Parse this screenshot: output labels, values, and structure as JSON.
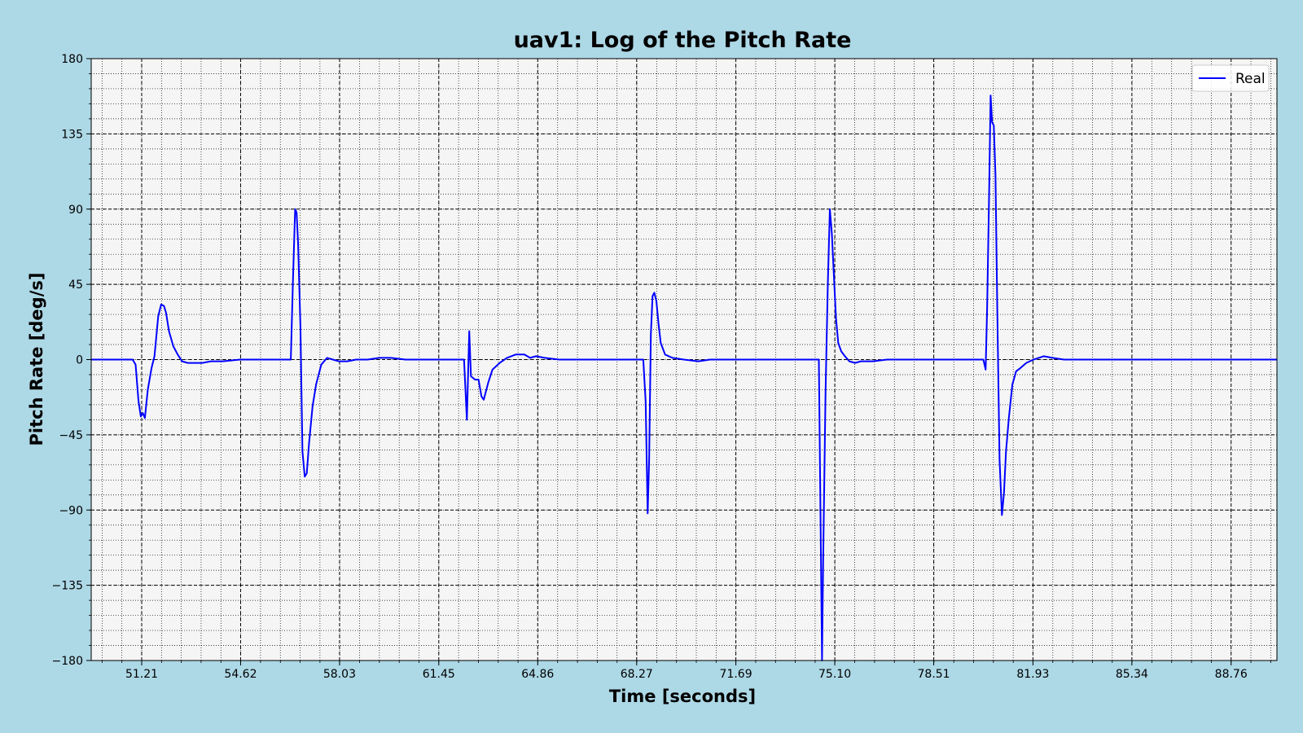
{
  "colors": {
    "page_background": "#add8e6",
    "plot_background": "#f5f5f5",
    "series_line": "#0000ff",
    "grid_major": "#000000",
    "grid_minor": "#000000"
  },
  "chart_data": {
    "type": "line",
    "title": "uav1: Log of the Pitch Rate",
    "xlabel": "Time [seconds]",
    "ylabel": "Pitch Rate [deg/s]",
    "xlim": [
      49.47,
      90.34
    ],
    "ylim": [
      -180,
      180
    ],
    "x_ticks": [
      51.21,
      54.62,
      58.03,
      61.45,
      64.86,
      68.27,
      71.69,
      75.1,
      78.51,
      81.93,
      85.34,
      88.76
    ],
    "x_tick_labels": [
      "51.21",
      "54.62",
      "58.03",
      "61.45",
      "64.86",
      "68.27",
      "71.69",
      "75.10",
      "78.51",
      "81.93",
      "85.34",
      "88.76"
    ],
    "y_ticks": [
      -180,
      -135,
      -90,
      -45,
      0,
      45,
      90,
      135,
      180
    ],
    "y_tick_labels": [
      "−180",
      "−135",
      "−90",
      "−45",
      "0",
      "45",
      "90",
      "135",
      "180"
    ],
    "grid": true,
    "minor_grid": true,
    "legend": {
      "position": "top-right",
      "entries": [
        "Real"
      ]
    },
    "series": [
      {
        "name": "Real",
        "points": [
          [
            49.47,
            0
          ],
          [
            50.9,
            0
          ],
          [
            51.0,
            -3
          ],
          [
            51.1,
            -25
          ],
          [
            51.18,
            -34
          ],
          [
            51.25,
            -32
          ],
          [
            51.32,
            -35
          ],
          [
            51.42,
            -18
          ],
          [
            51.55,
            -5
          ],
          [
            51.65,
            2
          ],
          [
            51.78,
            26
          ],
          [
            51.88,
            33
          ],
          [
            51.98,
            32
          ],
          [
            52.05,
            28
          ],
          [
            52.15,
            17
          ],
          [
            52.3,
            8
          ],
          [
            52.45,
            3
          ],
          [
            52.6,
            -1
          ],
          [
            52.8,
            -2
          ],
          [
            53.0,
            -2
          ],
          [
            53.3,
            -2
          ],
          [
            53.6,
            -1
          ],
          [
            54.0,
            -1
          ],
          [
            54.6,
            0
          ],
          [
            55.5,
            0
          ],
          [
            56.35,
            0
          ],
          [
            56.42,
            45
          ],
          [
            56.5,
            90
          ],
          [
            56.55,
            88
          ],
          [
            56.6,
            70
          ],
          [
            56.68,
            20
          ],
          [
            56.75,
            -55
          ],
          [
            56.83,
            -70
          ],
          [
            56.9,
            -68
          ],
          [
            56.98,
            -50
          ],
          [
            57.1,
            -28
          ],
          [
            57.22,
            -15
          ],
          [
            57.4,
            -3
          ],
          [
            57.6,
            1
          ],
          [
            57.8,
            0
          ],
          [
            58.0,
            -1
          ],
          [
            58.3,
            -1
          ],
          [
            58.6,
            0
          ],
          [
            59.0,
            0
          ],
          [
            59.4,
            1
          ],
          [
            59.8,
            1
          ],
          [
            60.3,
            0
          ],
          [
            60.8,
            0
          ],
          [
            61.4,
            0
          ],
          [
            62.0,
            0
          ],
          [
            62.32,
            0
          ],
          [
            62.42,
            -36
          ],
          [
            62.5,
            17
          ],
          [
            62.56,
            -10
          ],
          [
            62.7,
            -12
          ],
          [
            62.82,
            -12
          ],
          [
            62.92,
            -22
          ],
          [
            63.0,
            -24
          ],
          [
            63.15,
            -14
          ],
          [
            63.3,
            -6
          ],
          [
            63.55,
            -2
          ],
          [
            63.8,
            1
          ],
          [
            64.1,
            3
          ],
          [
            64.4,
            3
          ],
          [
            64.6,
            1
          ],
          [
            64.8,
            2
          ],
          [
            65.1,
            1
          ],
          [
            65.6,
            0
          ],
          [
            66.2,
            0
          ],
          [
            67.0,
            0
          ],
          [
            68.0,
            0
          ],
          [
            68.5,
            0
          ],
          [
            68.58,
            -25
          ],
          [
            68.65,
            -92
          ],
          [
            68.7,
            -60
          ],
          [
            68.76,
            15
          ],
          [
            68.82,
            38
          ],
          [
            68.88,
            40
          ],
          [
            68.95,
            35
          ],
          [
            69.02,
            22
          ],
          [
            69.1,
            10
          ],
          [
            69.25,
            3
          ],
          [
            69.5,
            1
          ],
          [
            69.9,
            0
          ],
          [
            70.4,
            -1
          ],
          [
            70.8,
            0
          ],
          [
            71.4,
            0
          ],
          [
            72.2,
            0
          ],
          [
            73.0,
            0
          ],
          [
            73.8,
            0
          ],
          [
            74.55,
            0
          ],
          [
            74.62,
            -115
          ],
          [
            74.66,
            -180
          ],
          [
            74.7,
            -120
          ],
          [
            74.78,
            -20
          ],
          [
            74.86,
            45
          ],
          [
            74.93,
            90
          ],
          [
            75.0,
            75
          ],
          [
            75.07,
            50
          ],
          [
            75.14,
            25
          ],
          [
            75.22,
            10
          ],
          [
            75.32,
            5
          ],
          [
            75.45,
            2
          ],
          [
            75.6,
            -1
          ],
          [
            75.8,
            -2
          ],
          [
            76.0,
            -1
          ],
          [
            76.4,
            -1
          ],
          [
            76.9,
            0
          ],
          [
            77.4,
            0
          ],
          [
            78.0,
            0
          ],
          [
            78.6,
            0
          ],
          [
            79.2,
            0
          ],
          [
            79.6,
            0
          ],
          [
            80.0,
            0
          ],
          [
            80.22,
            0
          ],
          [
            80.3,
            -6
          ],
          [
            80.35,
            30
          ],
          [
            80.42,
            100
          ],
          [
            80.47,
            158
          ],
          [
            80.52,
            142
          ],
          [
            80.58,
            140
          ],
          [
            80.64,
            110
          ],
          [
            80.7,
            30
          ],
          [
            80.78,
            -60
          ],
          [
            80.86,
            -93
          ],
          [
            80.93,
            -80
          ],
          [
            81.0,
            -55
          ],
          [
            81.1,
            -35
          ],
          [
            81.22,
            -15
          ],
          [
            81.35,
            -7
          ],
          [
            81.5,
            -5
          ],
          [
            81.7,
            -2
          ],
          [
            81.95,
            0
          ],
          [
            82.3,
            2
          ],
          [
            82.6,
            1
          ],
          [
            83.0,
            0
          ],
          [
            83.5,
            0
          ],
          [
            84.2,
            0
          ],
          [
            85.0,
            0
          ],
          [
            86.0,
            0
          ],
          [
            87.0,
            0
          ],
          [
            88.0,
            0
          ],
          [
            89.0,
            0
          ],
          [
            90.34,
            0
          ]
        ]
      }
    ]
  }
}
